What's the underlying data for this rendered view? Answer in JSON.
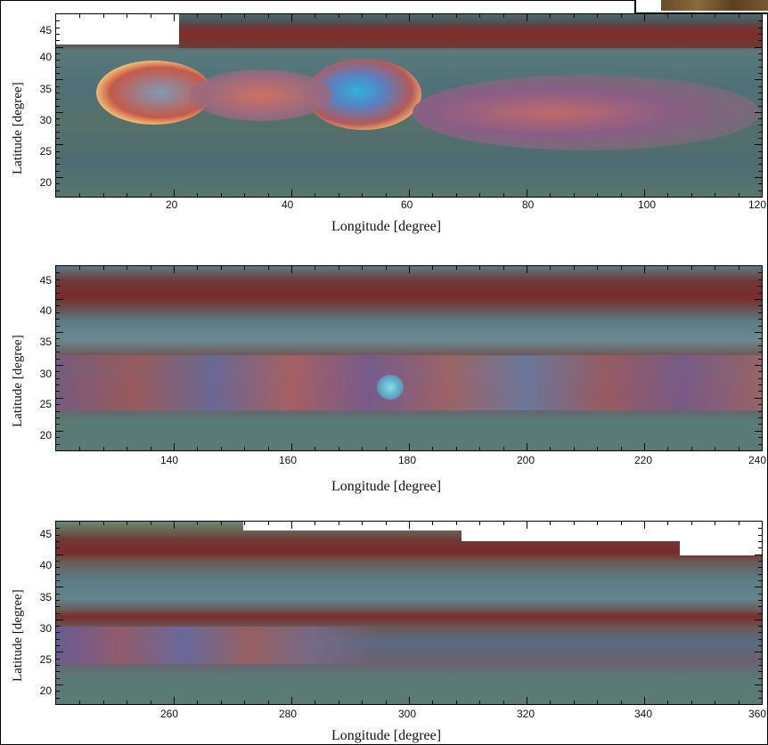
{
  "panels": [
    {
      "ylabel": "Latitude [degree]",
      "xlabel": "Longitude [degree]",
      "xticks": [
        "20",
        "40",
        "60",
        "80",
        "100",
        "120"
      ],
      "yticks": [
        "45",
        "40",
        "35",
        "30",
        "25",
        "20"
      ]
    },
    {
      "ylabel": "Latitude [degree]",
      "xlabel": "Longitude [degree]",
      "xticks": [
        "140",
        "160",
        "180",
        "200",
        "220",
        "240"
      ],
      "yticks": [
        "45",
        "40",
        "35",
        "30",
        "25",
        "20"
      ]
    },
    {
      "ylabel": "Latitude [degree]",
      "xlabel": "Longitude [degree]",
      "xticks": [
        "260",
        "280",
        "300",
        "320",
        "340",
        "360"
      ],
      "yticks": [
        "45",
        "40",
        "35",
        "30",
        "25",
        "20"
      ]
    }
  ]
}
